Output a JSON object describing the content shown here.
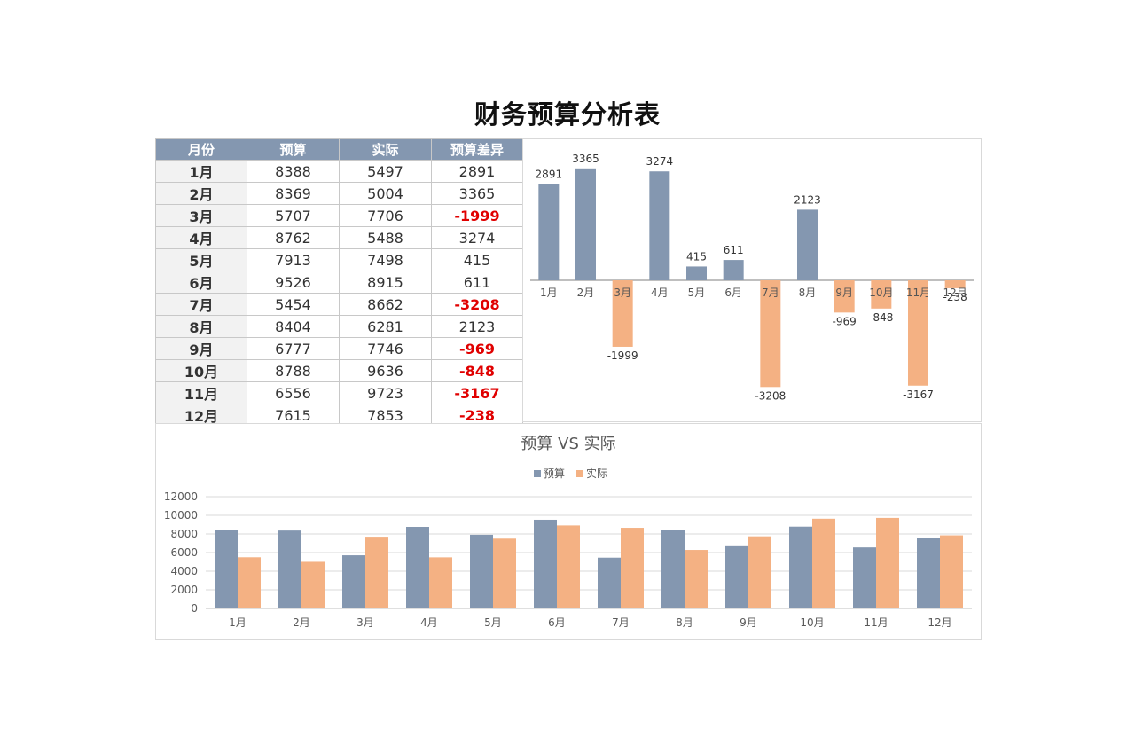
{
  "page_title": "财务预算分析表",
  "table": {
    "headers": [
      "月份",
      "预算",
      "实际",
      "预算差异"
    ],
    "rows": [
      [
        "1月",
        "8388",
        "5497",
        "2891"
      ],
      [
        "2月",
        "8369",
        "5004",
        "3365"
      ],
      [
        "3月",
        "5707",
        "7706",
        "-1999"
      ],
      [
        "4月",
        "8762",
        "5488",
        "3274"
      ],
      [
        "5月",
        "7913",
        "7498",
        "415"
      ],
      [
        "6月",
        "9526",
        "8915",
        "611"
      ],
      [
        "7月",
        "5454",
        "8662",
        "-3208"
      ],
      [
        "8月",
        "8404",
        "6281",
        "2123"
      ],
      [
        "9月",
        "6777",
        "7746",
        "-969"
      ],
      [
        "10月",
        "8788",
        "9636",
        "-848"
      ],
      [
        "11月",
        "6556",
        "9723",
        "-3167"
      ],
      [
        "12月",
        "7615",
        "7853",
        "-238"
      ]
    ],
    "negative_color": "#e00000"
  },
  "chart_data": [
    {
      "type": "bar",
      "title": "",
      "categories": [
        "1月",
        "2月",
        "3月",
        "4月",
        "5月",
        "6月",
        "7月",
        "8月",
        "9月",
        "10月",
        "11月",
        "12月"
      ],
      "values": [
        2891,
        3365,
        -1999,
        3274,
        415,
        611,
        -3208,
        2123,
        -969,
        -848,
        -3167,
        -238
      ],
      "positive_color": "#8497b0",
      "negative_color": "#f4b183",
      "data_labels": true,
      "legend": "none"
    },
    {
      "type": "bar",
      "title": "预算 VS 实际",
      "categories": [
        "1月",
        "2月",
        "3月",
        "4月",
        "5月",
        "6月",
        "7月",
        "8月",
        "9月",
        "10月",
        "11月",
        "12月"
      ],
      "series": [
        {
          "name": "预算",
          "color": "#8497b0",
          "values": [
            8388,
            8369,
            5707,
            8762,
            7913,
            9526,
            5454,
            8404,
            6777,
            8788,
            6556,
            7615
          ]
        },
        {
          "name": "实际",
          "color": "#f4b183",
          "values": [
            5497,
            5004,
            7706,
            5488,
            7498,
            8915,
            8662,
            6281,
            7746,
            9636,
            9723,
            7853
          ]
        }
      ],
      "ylim": [
        0,
        12000
      ],
      "yticks": [
        "0",
        "2000",
        "4000",
        "6000",
        "8000",
        "10000",
        "12000"
      ],
      "grid": true,
      "legend": "top"
    }
  ]
}
